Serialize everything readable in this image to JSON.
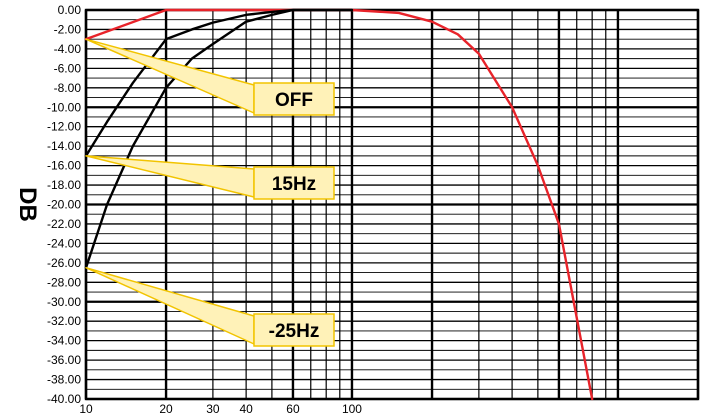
{
  "chart_data": {
    "type": "line",
    "title": "",
    "xlabel": "",
    "ylabel": "DB",
    "x_scale": "log",
    "xlim": [
      10,
      2000
    ],
    "ylim": [
      -40,
      0
    ],
    "x_tick_labels": [
      {
        "value": 10,
        "label": "10"
      },
      {
        "value": 20,
        "label": "20"
      },
      {
        "value": 30,
        "label": "30"
      },
      {
        "value": 40,
        "label": "40"
      },
      {
        "value": 60,
        "label": "60"
      },
      {
        "value": 100,
        "label": "100"
      }
    ],
    "y_ticks": [
      0,
      -2,
      -4,
      -6,
      -8,
      -10,
      -12,
      -14,
      -16,
      -18,
      -20,
      -22,
      -24,
      -26,
      -28,
      -30,
      -32,
      -34,
      -36,
      -38,
      -40
    ],
    "y_tick_labels": [
      "0.00",
      "-2.00",
      "-4.00",
      "-6.00",
      "-8.00",
      "-10.00",
      "-12.00",
      "-14.00",
      "-16.00",
      "-18.00",
      "-20.00",
      "-22.00",
      "-24.00",
      "-26.00",
      "-28.00",
      "-30.00",
      "-32.00",
      "-34.00",
      "-36.00",
      "-38.00",
      "-40.00"
    ],
    "grid": true,
    "series": [
      {
        "color": "#e8232a",
        "x": [
          10,
          20,
          40,
          60,
          100,
          150,
          200,
          250,
          300,
          400,
          500,
          600,
          800
        ],
        "y": [
          -3,
          0,
          0,
          0,
          0,
          -0.3,
          -1.2,
          -2.5,
          -4.5,
          -10,
          -16,
          -22,
          -40
        ]
      },
      {
        "color": "#000000",
        "x": [
          10,
          12,
          15,
          20,
          25,
          30,
          40,
          50,
          60,
          80,
          100
        ],
        "y": [
          -15,
          -11.5,
          -7.5,
          -3,
          -2,
          -1.3,
          -0.5,
          -0.2,
          0,
          0,
          0
        ]
      },
      {
        "color": "#000000",
        "x": [
          10,
          12,
          15,
          20,
          25,
          30,
          40,
          50,
          60,
          80,
          100
        ],
        "y": [
          -26.5,
          -20,
          -14,
          -8,
          -5,
          -3.5,
          -1.2,
          -0.5,
          0,
          0,
          0
        ]
      }
    ],
    "annotations": [
      {
        "text": "OFF",
        "points_to_y": -3
      },
      {
        "text": "15Hz",
        "points_to_y": -15
      },
      {
        "text": "-25Hz",
        "points_to_y": -26.5
      }
    ],
    "callout_color": "#fff2b8",
    "callout_border": "#f2c400"
  }
}
